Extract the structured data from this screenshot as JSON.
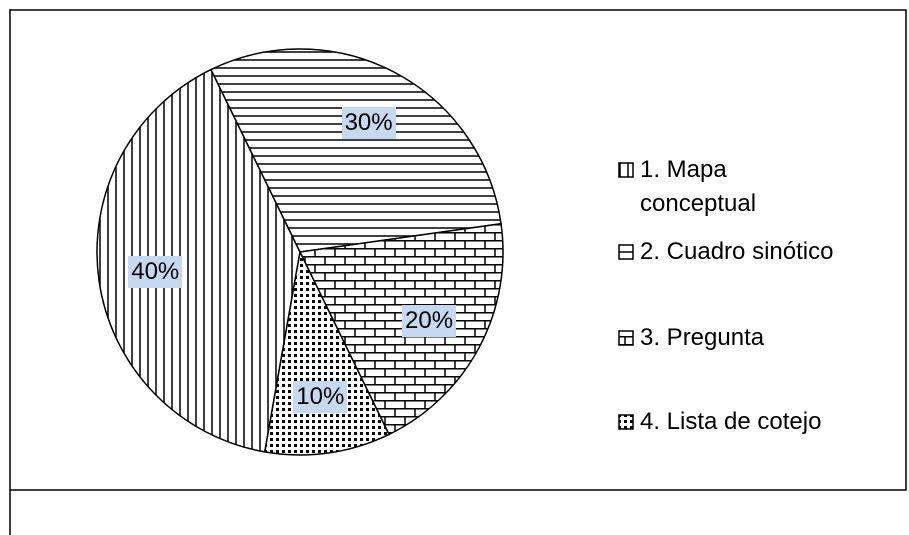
{
  "chart_data": {
    "type": "pie",
    "categories": [
      "1. Mapa conceptual",
      "2. Cuadro sinótico",
      "3. Pregunta",
      "4. Lista de cotejo"
    ],
    "values": [
      40,
      30,
      20,
      10
    ],
    "value_labels": [
      "40%",
      "30%",
      "20%",
      "10%"
    ]
  }
}
